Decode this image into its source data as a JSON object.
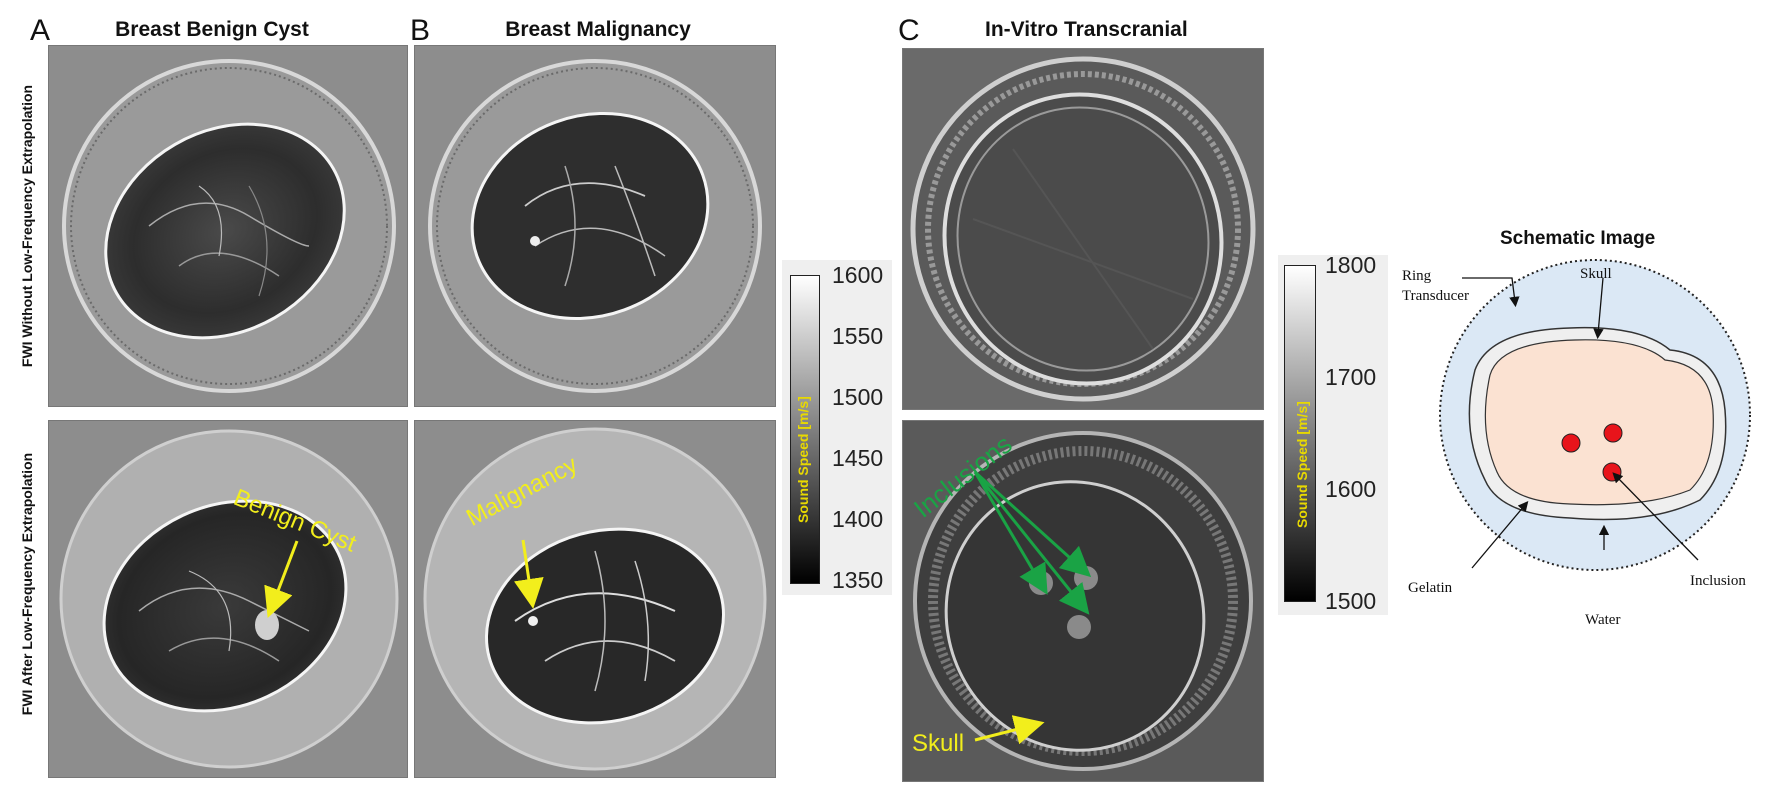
{
  "panels": {
    "a_letter": "A",
    "b_letter": "B",
    "c_letter": "C",
    "a_title": "Breast Benign Cyst",
    "b_title": "Breast Malignancy",
    "c_title": "In-Vitro Transcranial"
  },
  "rows": {
    "top_label": "FWI Without Low-Frequency Extrapolation",
    "bottom_label": "FWI After Low-Frequency Extrapolation"
  },
  "annotations": {
    "benign_cyst": "Benign Cyst",
    "malignancy": "Malignancy",
    "inclusions": "Inclusions",
    "skull": "Skull"
  },
  "colorbar_breast": {
    "label": "Sound Speed [m/s]",
    "ticks": [
      "1600",
      "1550",
      "1500",
      "1450",
      "1400",
      "1350"
    ]
  },
  "colorbar_skull": {
    "label": "Sound Speed [m/s]",
    "ticks": [
      "1800",
      "1700",
      "1600",
      "1500"
    ]
  },
  "schematic": {
    "title": "Schematic Image",
    "ring_transducer_line1": "Ring",
    "ring_transducer_line2": "Transducer",
    "skull": "Skull",
    "gelatin": "Gelatin",
    "water": "Water",
    "inclusion": "Inclusion"
  },
  "colors": {
    "annotation_yellow": "#f2ee1c",
    "annotation_green": "#1aa345",
    "water_blue": "#dbe8f5",
    "gelatin_peach": "#fbe2d2",
    "inclusion_red": "#e8141b"
  }
}
